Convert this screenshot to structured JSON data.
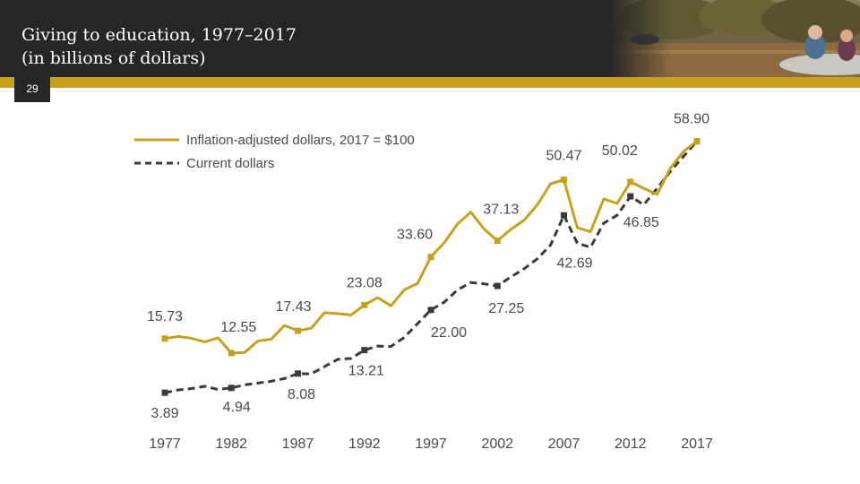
{
  "slide": {
    "title_line1": "Giving to education, 1977–2017",
    "title_line2": "(in billions of dollars)",
    "number": "29"
  },
  "colors": {
    "gold": "#c6a11e",
    "dark": "#262626",
    "dash": "#3a3a3a",
    "label": "#4a4a4a"
  },
  "chart_data": {
    "type": "line",
    "title": "Giving to education, 1977–2017 (in billions of dollars)",
    "xlabel": "",
    "ylabel": "",
    "ylim": [
      0,
      60
    ],
    "xlim": [
      1977,
      2017
    ],
    "x_ticks": [
      "1977",
      "1982",
      "1987",
      "1992",
      "1997",
      "2002",
      "2007",
      "2012",
      "2017"
    ],
    "legend": [
      "Inflation-adjusted dollars, 2017 = $100",
      "Current dollars"
    ],
    "series": [
      {
        "name": "Inflation-adjusted dollars, 2017 = $100",
        "style": "solid",
        "x": [
          1977,
          1978,
          1979,
          1980,
          1981,
          1982,
          1983,
          1984,
          1985,
          1986,
          1987,
          1988,
          1989,
          1990,
          1991,
          1992,
          1993,
          1994,
          1995,
          1996,
          1997,
          1998,
          1999,
          2000,
          2001,
          2002,
          2003,
          2004,
          2005,
          2006,
          2007,
          2008,
          2009,
          2010,
          2011,
          2012,
          2013,
          2014,
          2015,
          2016,
          2017
        ],
        "y": [
          15.73,
          16.2,
          15.8,
          15.0,
          15.9,
          12.55,
          12.7,
          15.2,
          15.6,
          18.6,
          17.43,
          18.0,
          21.4,
          21.2,
          20.9,
          23.08,
          24.7,
          22.9,
          26.4,
          27.8,
          33.6,
          36.7,
          40.8,
          43.4,
          39.7,
          37.13,
          39.6,
          41.6,
          45.0,
          49.6,
          50.47,
          40.0,
          39.1,
          46.3,
          45.3,
          50.02,
          48.6,
          47.3,
          53.0,
          56.7,
          58.9
        ]
      },
      {
        "name": "Current dollars",
        "style": "dashed",
        "x": [
          1977,
          1978,
          1979,
          1980,
          1981,
          1982,
          1983,
          1984,
          1985,
          1986,
          1987,
          1988,
          1989,
          1990,
          1991,
          1992,
          1993,
          1994,
          1995,
          1996,
          1997,
          1998,
          1999,
          2000,
          2001,
          2002,
          2003,
          2004,
          2005,
          2006,
          2007,
          2008,
          2009,
          2010,
          2011,
          2012,
          2013,
          2014,
          2015,
          2016,
          2017
        ],
        "y": [
          3.89,
          4.5,
          4.8,
          5.3,
          4.6,
          4.94,
          5.6,
          6.0,
          6.4,
          7.0,
          8.08,
          8.0,
          9.6,
          11.2,
          11.4,
          13.21,
          14.1,
          14.0,
          16.0,
          19.0,
          22.0,
          23.7,
          26.4,
          28.0,
          27.7,
          27.25,
          29.2,
          31.0,
          33.2,
          36.2,
          42.69,
          36.6,
          35.7,
          41.0,
          42.7,
          46.85,
          45.0,
          48.6,
          52.3,
          55.6,
          58.9
        ]
      }
    ],
    "annotations": {
      "gold": [
        {
          "x": 1977,
          "text": "15.73"
        },
        {
          "x": 1982,
          "text": "12.55"
        },
        {
          "x": 1987,
          "text": "17.43"
        },
        {
          "x": 1992,
          "text": "23.08"
        },
        {
          "x": 1997,
          "text": "33.60"
        },
        {
          "x": 2002,
          "text": "37.13"
        },
        {
          "x": 2007,
          "text": "50.47"
        },
        {
          "x": 2012,
          "text": "50.02"
        },
        {
          "x": 2017,
          "text": "58.90"
        }
      ],
      "dark": [
        {
          "x": 1977,
          "text": "3.89"
        },
        {
          "x": 1982,
          "text": "4.94"
        },
        {
          "x": 1987,
          "text": "8.08"
        },
        {
          "x": 1992,
          "text": "13.21"
        },
        {
          "x": 1997,
          "text": "22.00"
        },
        {
          "x": 2002,
          "text": "27.25"
        },
        {
          "x": 2007,
          "text": "42.69"
        },
        {
          "x": 2012,
          "text": "46.85"
        }
      ]
    }
  }
}
